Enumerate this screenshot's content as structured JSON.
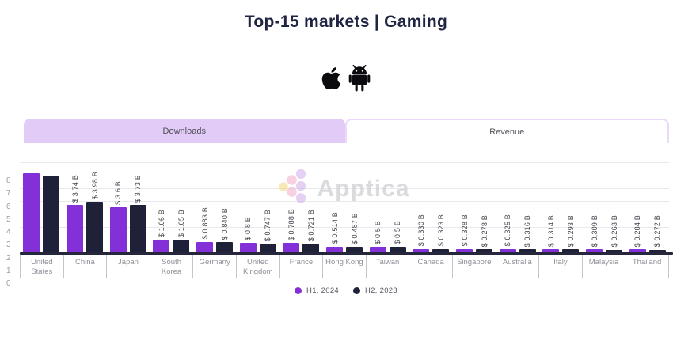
{
  "header": {
    "title": "Top-15 markets | Gaming"
  },
  "platforms": {
    "apple": "apple-icon",
    "android": "android-icon"
  },
  "tabs": {
    "downloads": {
      "label": "Downloads",
      "active": true
    },
    "revenue": {
      "label": "Revenue",
      "active": false
    }
  },
  "watermark": {
    "text": "Apptica"
  },
  "colors": {
    "accent_purple": "#8430D9",
    "dark_navy": "#1E2138",
    "tab_active_bg": "#E3CBF8",
    "tab_border": "#E9D9FB",
    "title": "#1F2442"
  },
  "legend": [
    {
      "label": "H1, 2024",
      "color": "#8430D9"
    },
    {
      "label": "H2, 2023",
      "color": "#1E2138"
    }
  ],
  "chart_data": {
    "type": "bar",
    "title": "Top-15 markets | Gaming",
    "categories": [
      "United States",
      "China",
      "Japan",
      "South Korea",
      "Germany",
      "United Kingdom",
      "France",
      "Hong Kong",
      "Taiwan",
      "Canada",
      "Singapore",
      "Australia",
      "Italy",
      "Malaysia",
      "Thailand"
    ],
    "series": [
      {
        "name": "H1, 2024",
        "color": "#8430D9",
        "values": [
          6.2,
          3.74,
          3.6,
          1.06,
          0.883,
          0.8,
          0.788,
          0.514,
          0.5,
          0.33,
          0.328,
          0.325,
          0.314,
          0.309,
          0.284
        ],
        "labels": [
          "",
          "$ 3.74 B",
          "$ 3.6 B",
          "$ 1.06 B",
          "$ 0.883 B",
          "$ 0.8 B",
          "$ 0.788 B",
          "$ 0.514 B",
          "$ 0.5 B",
          "$ 0.330 B",
          "$ 0.328 B",
          "$ 0.325 B",
          "$ 0.314 B",
          "$ 0.309 B",
          "$ 0.284 B"
        ]
      },
      {
        "name": "H2, 2023",
        "color": "#1E2138",
        "values": [
          6.05,
          3.98,
          3.73,
          1.05,
          0.84,
          0.747,
          0.721,
          0.487,
          0.5,
          0.323,
          0.278,
          0.316,
          0.293,
          0.263,
          0.272
        ],
        "labels": [
          "",
          "$ 3.98 B",
          "$ 3.73 B",
          "$ 1.05 B",
          "$ 0.840 B",
          "$ 0.747 B",
          "$ 0.721 B",
          "$ 0.487 B",
          "$ 0.5 B",
          "$ 0.323 B",
          "$ 0.278 B",
          "$ 0.316 B",
          "$ 0.293 B",
          "$ 0.263 B",
          "$ 0.272 B"
        ]
      }
    ],
    "ylim": [
      0,
      8
    ],
    "yticks": [
      0,
      1,
      2,
      3,
      4,
      5,
      6,
      7,
      8
    ],
    "grid": true,
    "legend_position": "bottom",
    "value_label_format": "$ {v} B",
    "value_label_rotation": 90
  }
}
